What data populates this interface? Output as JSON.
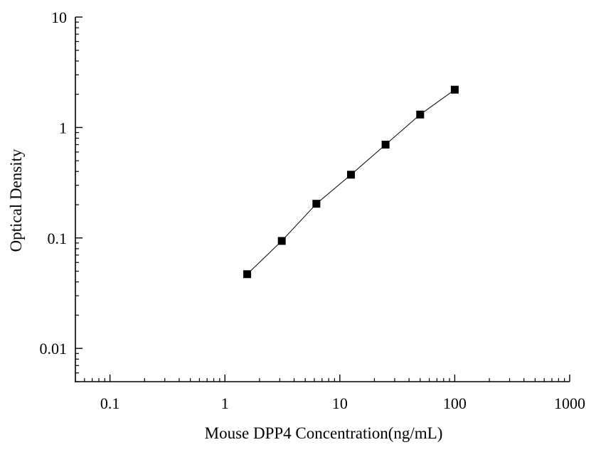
{
  "chart_data": {
    "type": "scatter",
    "xlabel": "Mouse DPP4 Concentration(ng/mL)",
    "ylabel": "Optical Density",
    "x_scale": "log",
    "y_scale": "log",
    "xlim": [
      0.05,
      1000
    ],
    "ylim": [
      0.005,
      10
    ],
    "x_ticks": [
      0.1,
      1,
      10,
      100,
      1000
    ],
    "x_tick_labels": [
      "0.1",
      "1",
      "10",
      "100",
      "1000"
    ],
    "y_ticks": [
      0.01,
      0.1,
      1,
      10
    ],
    "y_tick_labels": [
      "0.01",
      "0.1",
      "1",
      "10"
    ],
    "grid": false,
    "marker": "square",
    "series": [
      {
        "x": [
          1.5625,
          3.125,
          6.25,
          12.5,
          25,
          50,
          100
        ],
        "y": [
          0.047,
          0.094,
          0.204,
          0.374,
          0.7,
          1.31,
          2.2
        ]
      }
    ],
    "colors": {
      "line": "#000000",
      "marker": "#000000",
      "axis": "#000000"
    }
  }
}
